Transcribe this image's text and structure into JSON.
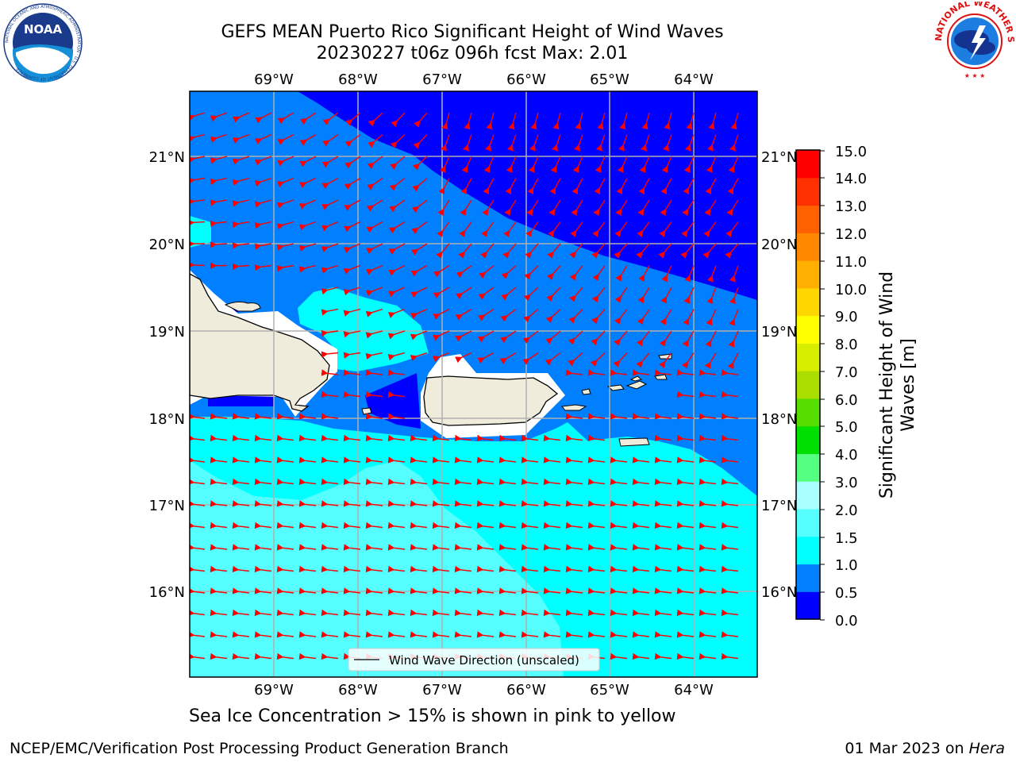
{
  "title": {
    "line1": "GEFS MEAN Puerto Rico Significant Height of Wind Waves",
    "line2": "20230227 t06z 096h fcst   Max: 2.01"
  },
  "map": {
    "lon_labels": [
      "69°W",
      "68°W",
      "67°W",
      "66°W",
      "65°W",
      "64°W"
    ],
    "lat_labels": [
      "21°N",
      "20°N",
      "19°N",
      "18°N",
      "17°N",
      "16°N"
    ],
    "legend_label": "Wind Wave Direction (unscaled)",
    "arrow_color": "#ff0000",
    "land_color": "#efecdc"
  },
  "colorbar": {
    "label": "Significant Height of Wind Waves [m]",
    "label_line1": "Significant Height of Wind",
    "label_line2": "Waves [m]",
    "ticks": [
      "15.0",
      "14.0",
      "13.0",
      "12.0",
      "11.0",
      "10.0",
      "9.0",
      "8.0",
      "7.0",
      "6.0",
      "5.0",
      "4.0",
      "3.0",
      "2.0",
      "1.5",
      "1.0",
      "0.5",
      "0.0"
    ],
    "colors_bottom_to_top": [
      "#0000ff",
      "#0080ff",
      "#00ffff",
      "#55ffff",
      "#aaffff",
      "#55ff80",
      "#00e000",
      "#55dd00",
      "#aadd00",
      "#d7ee00",
      "#ffff00",
      "#ffd700",
      "#ffb000",
      "#ff8800",
      "#ff6000",
      "#ff3000",
      "#ff0000"
    ]
  },
  "footer": {
    "ice_note": "Sea Ice Concentration > 15% is shown in pink to yellow",
    "credit": "NCEP/EMC/Verification Post Processing Product Generation Branch",
    "date": "01 Mar 2023 on ",
    "host": "Hera"
  },
  "logos": {
    "noaa": "NOAA",
    "noaa_ring": "NATIONAL OCEANIC AND ATMOSPHERIC ADMINISTRATION · U.S. DEPARTMENT OF COMMERCE",
    "nws_ring": "NATIONAL WEATHER SERVICE"
  }
}
